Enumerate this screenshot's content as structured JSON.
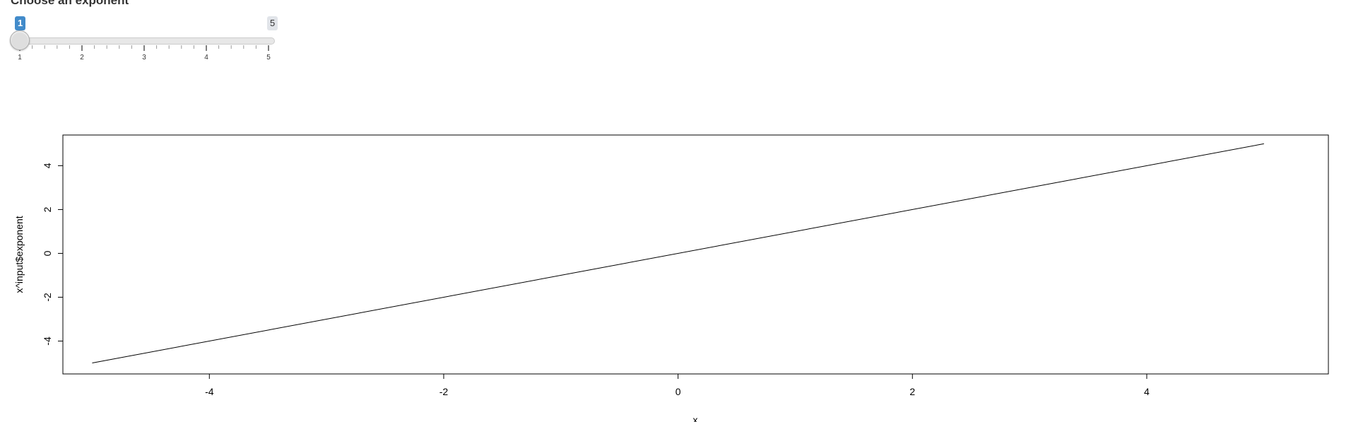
{
  "slider": {
    "label": "Choose an exponent",
    "min": 1,
    "max": 5,
    "value": 1,
    "min_label": "1",
    "max_label": "5",
    "grid_labels": [
      "1",
      "2",
      "3",
      "4",
      "5"
    ]
  },
  "chart_data": {
    "type": "line",
    "title": "",
    "xlabel": "x",
    "ylabel": "x^input$exponent",
    "xlim": [
      -5.25,
      5.55
    ],
    "ylim": [
      -5.5,
      5.4
    ],
    "x_ticks": [
      -4,
      -2,
      0,
      2,
      4
    ],
    "y_ticks": [
      -4,
      -2,
      0,
      2,
      4
    ],
    "x_tick_labels": [
      "-4",
      "-2",
      "0",
      "2",
      "4"
    ],
    "y_tick_labels": [
      "-4",
      "-2",
      "0",
      "2",
      "4"
    ],
    "grid": false,
    "series": [
      {
        "x": [
          -5,
          5
        ],
        "y": [
          -5,
          5
        ],
        "color": "#000000"
      }
    ]
  }
}
